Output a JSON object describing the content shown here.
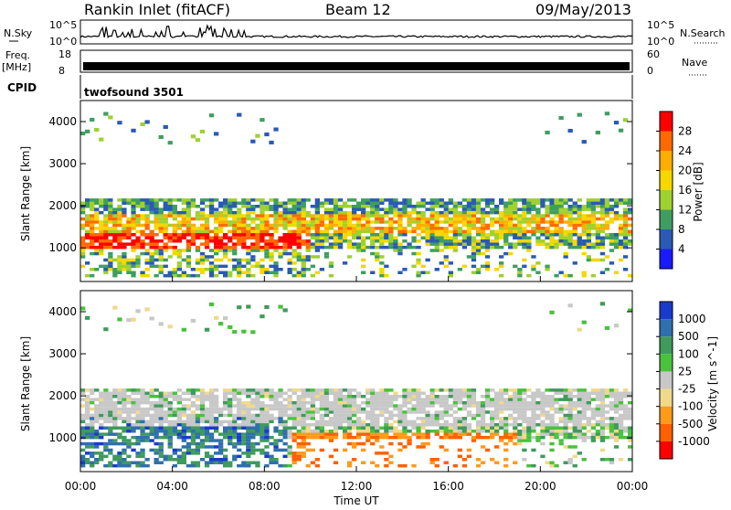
{
  "header": {
    "title": "Rankin Inlet (fitACF)",
    "beam": "Beam 12",
    "date": "09/May/2013"
  },
  "noise_panel": {
    "left_label": "N.Sky",
    "right_label": "N.Search",
    "left_ticks": [
      "10^5",
      "10^0"
    ],
    "right_ticks": [
      "10^5",
      "10^0"
    ]
  },
  "freq_panel": {
    "left_label_top": "Freq.",
    "left_label_unit": "[MHz]",
    "right_label": "Nave",
    "left_ticks": [
      "18",
      "8"
    ],
    "right_ticks": [
      "60",
      "0"
    ]
  },
  "cpid_panel": {
    "label": "CPID",
    "program": "twofsound 3501"
  },
  "chart_data": [
    {
      "type": "heatmap",
      "panel": "power",
      "ylabel": "Slant Range [km]",
      "ylim": [
        200,
        4500
      ],
      "yticks": [
        1000,
        2000,
        3000,
        4000
      ],
      "xlim_hours": [
        0,
        24
      ],
      "colorbar": {
        "label": "Power [dB]",
        "ticks": [
          "28",
          "24",
          "20",
          "16",
          "12",
          "8",
          "4"
        ],
        "colors": [
          "#ff0000",
          "#ff6a00",
          "#ffae00",
          "#f4d800",
          "#9fd12f",
          "#3f9e5f",
          "#2a5ab4",
          "#1a1aff"
        ]
      },
      "features": [
        {
          "name": "main echo band",
          "t_start": 0,
          "t_end": 24,
          "range_low": 900,
          "range_high": 2100
        },
        {
          "name": "strong near-range echoes",
          "t_start": 0,
          "t_end": 10,
          "range_low": 500,
          "range_high": 1500
        },
        {
          "name": "far-range echoes",
          "t_start": 0,
          "t_end": 9,
          "range_low": 3500,
          "range_high": 4200
        }
      ]
    },
    {
      "type": "heatmap",
      "panel": "velocity",
      "ylabel": "Slant Range [km]",
      "ylim": [
        200,
        4500
      ],
      "yticks": [
        1000,
        2000,
        3000,
        4000
      ],
      "xlim_hours": [
        0,
        24
      ],
      "colorbar": {
        "label": "Velocity [m s^-1]",
        "ticks": [
          "1000",
          "500",
          "100",
          "25",
          "-25",
          "-100",
          "-500",
          "-1000"
        ],
        "colors": [
          "#1a3acc",
          "#2f6fae",
          "#3f9a5c",
          "#49c23c",
          "#c8c8c8",
          "#f0d98a",
          "#ff9a1a",
          "#ff6000",
          "#ff0000"
        ]
      },
      "features": [
        {
          "name": "ground scatter band",
          "t_start": 0,
          "t_end": 24,
          "range_low": 1100,
          "range_high": 2100
        },
        {
          "name": "positive velocity (toward)",
          "t_start": 1,
          "t_end": 9,
          "range_low": 400,
          "range_high": 1500
        },
        {
          "name": "negative velocity (away)",
          "t_start": 9,
          "t_end": 19,
          "range_low": 500,
          "range_high": 1100
        }
      ]
    }
  ],
  "x_axis": {
    "label": "Time UT",
    "ticks": [
      "00:00",
      "04:00",
      "08:00",
      "12:00",
      "16:00",
      "20:00",
      "00:00"
    ]
  }
}
